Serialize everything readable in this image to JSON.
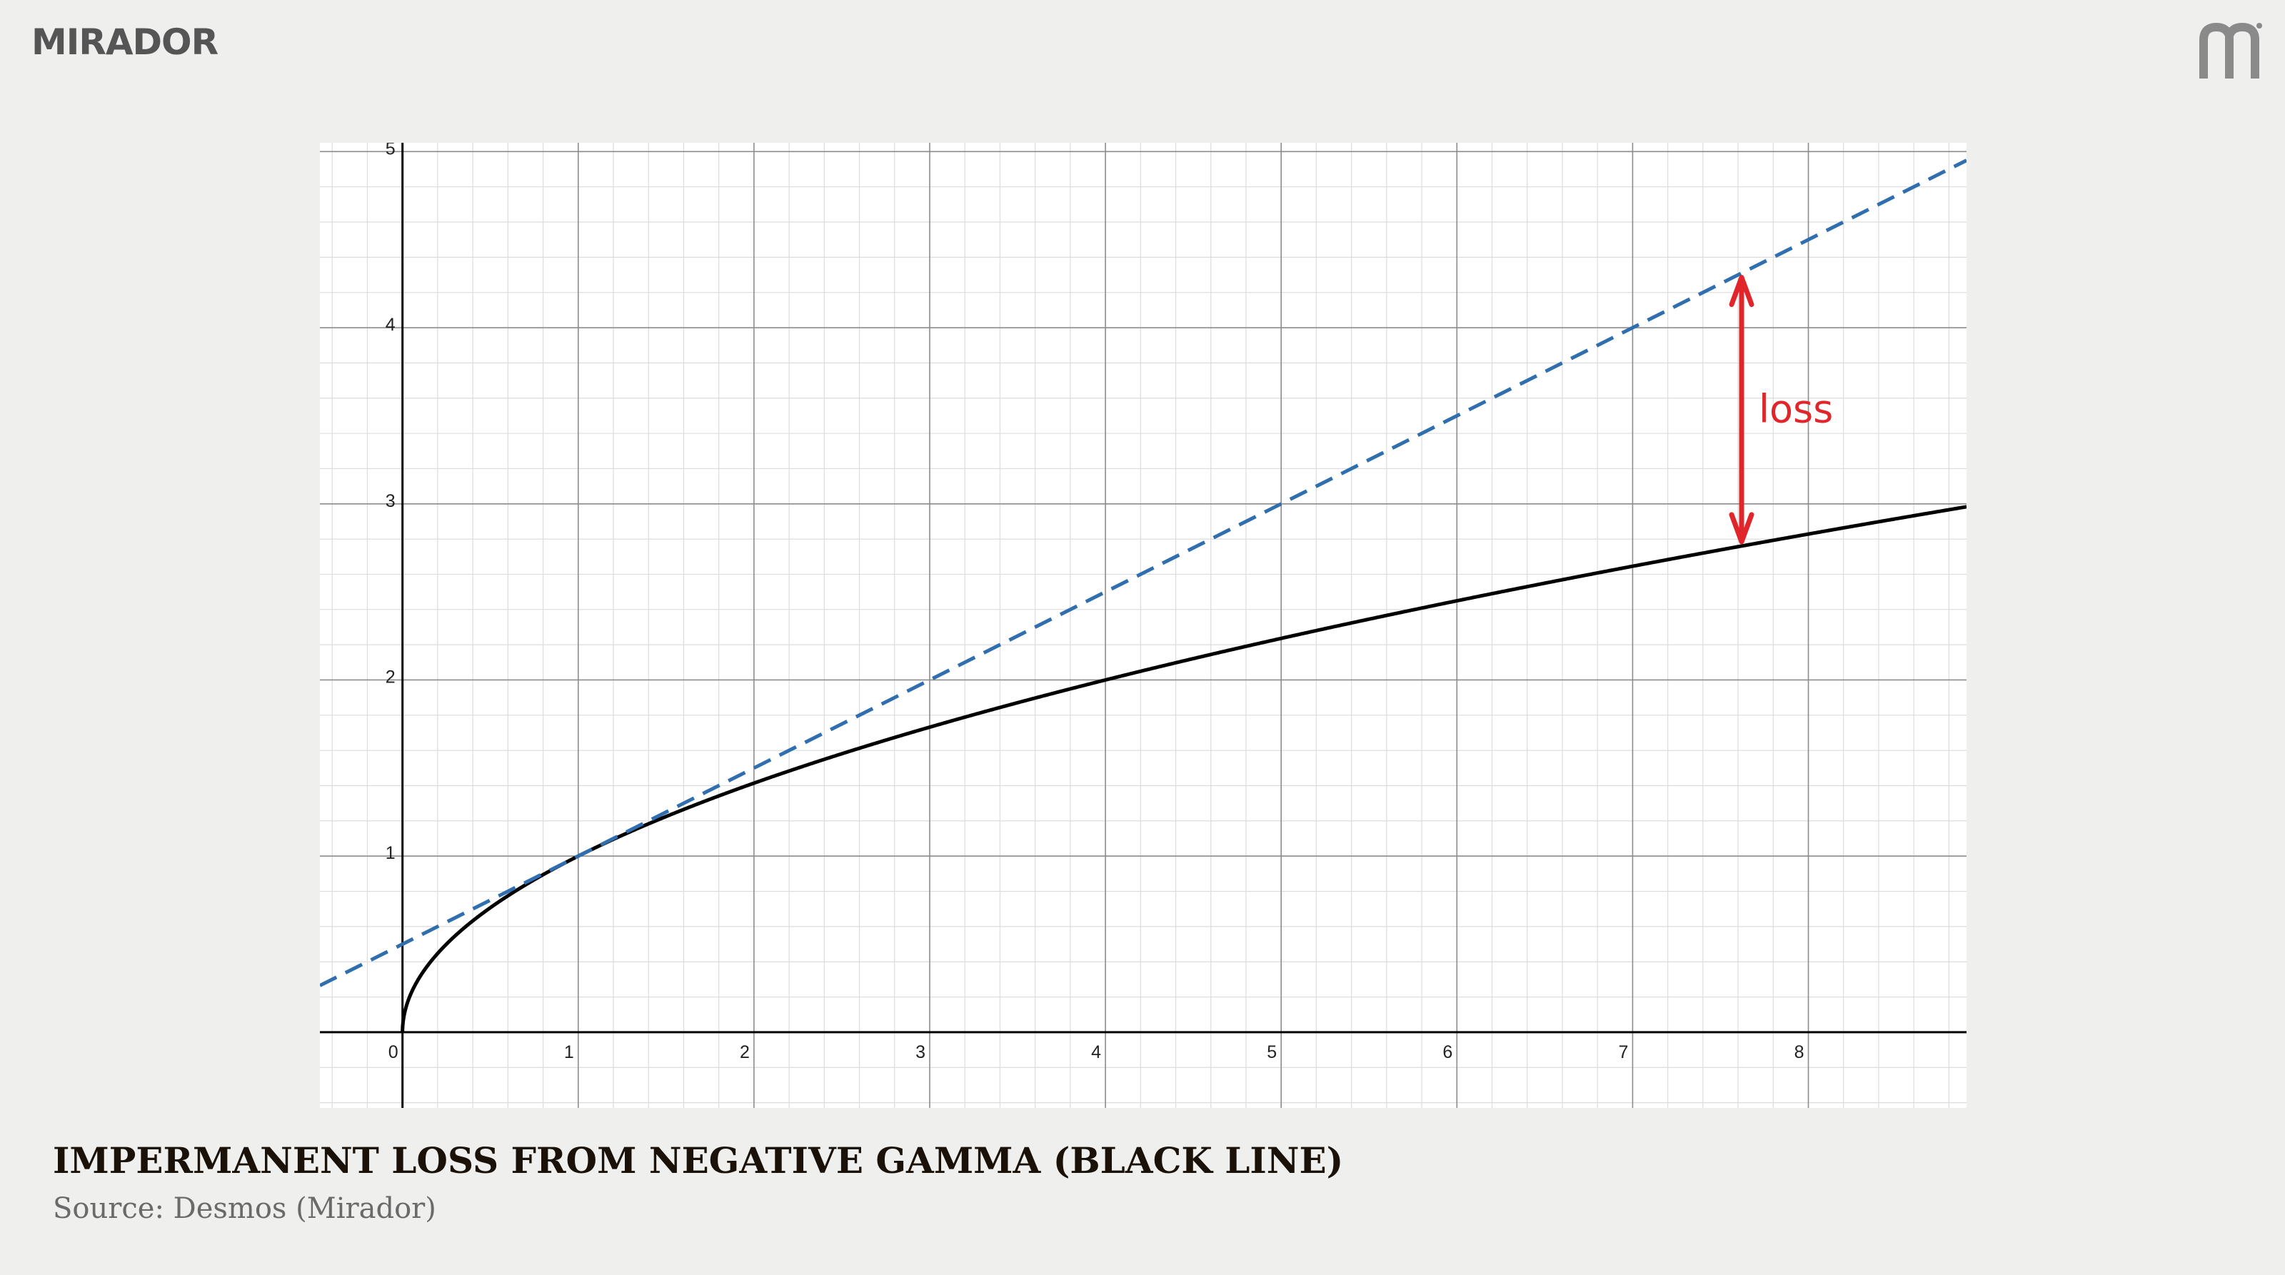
{
  "header": {
    "brand": "MIRADOR"
  },
  "caption": {
    "title": "IMPERMANENT LOSS FROM NEGATIVE GAMMA (BLACK LINE)",
    "source": "Source: Desmos (Mirador)"
  },
  "chart_data": {
    "type": "line",
    "title": "",
    "xlabel": "",
    "ylabel": "",
    "xlim": [
      -0.47,
      8.9
    ],
    "ylim": [
      -0.43,
      5.05
    ],
    "grid": true,
    "x_ticks": [
      0,
      1,
      2,
      3,
      4,
      5,
      6,
      7,
      8
    ],
    "y_ticks": [
      1,
      2,
      3,
      4,
      5
    ],
    "series": [
      {
        "name": "",
        "function": "y = sqrt(x)",
        "color": "#000000",
        "style": "solid"
      },
      {
        "name": "",
        "function": "y = 0.5x + 0.5",
        "color": "#2f6eaf",
        "style": "dashed"
      }
    ],
    "annotations": [
      {
        "text": "loss",
        "x": 7.62,
        "color": "#e0262a",
        "from_series": 0,
        "to_series": 1
      }
    ]
  }
}
